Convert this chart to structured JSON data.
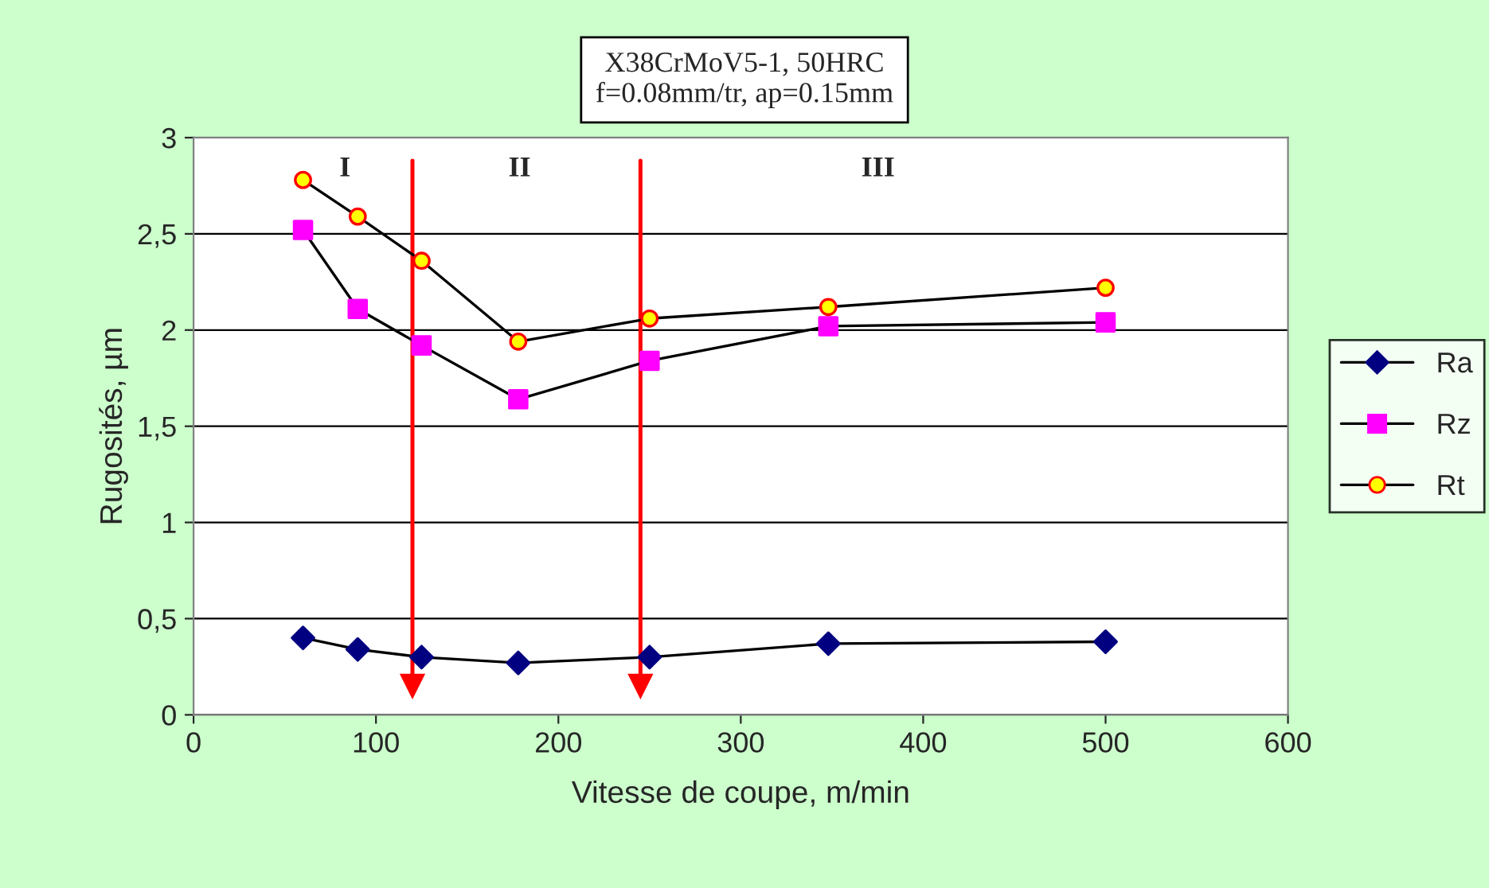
{
  "chart_data": {
    "type": "line",
    "title": "X38CrMoV5-1, 50HRC\nf=0.08mm/tr, ap=0.15mm",
    "xlabel": "Vitesse de coupe, m/min",
    "ylabel": "Rugosités, µm",
    "x": [
      60,
      90,
      125,
      178,
      250,
      348,
      500
    ],
    "series": [
      {
        "name": "Ra",
        "color": "#000080",
        "marker": "diamond",
        "values": [
          0.4,
          0.34,
          0.3,
          0.27,
          0.3,
          0.37,
          0.38
        ]
      },
      {
        "name": "Rz",
        "color": "#ff00ff",
        "marker": "square",
        "values": [
          2.52,
          2.11,
          1.92,
          1.64,
          1.84,
          2.02,
          2.04
        ]
      },
      {
        "name": "Rt",
        "color": "#ffff00",
        "marker": "circle",
        "values": [
          2.78,
          2.59,
          2.36,
          1.94,
          2.06,
          2.12,
          2.22
        ]
      }
    ],
    "xlim": [
      0,
      600
    ],
    "xticks": [
      0,
      100,
      200,
      300,
      400,
      500,
      600
    ],
    "ylim": [
      0,
      3
    ],
    "yticks": [
      0,
      {
        "value": 0.5,
        "label": "0,5"
      },
      1,
      {
        "value": 1.5,
        "label": "1,5"
      },
      2,
      {
        "value": 2.5,
        "label": "2,5"
      },
      3
    ],
    "grid": "y",
    "legend": "right",
    "ref_lines": [
      {
        "axis": "x",
        "value": 120,
        "color": "#ff0000"
      },
      {
        "axis": "x",
        "value": 245,
        "color": "#ff0000"
      }
    ],
    "annotations": [
      "I",
      "II",
      "III"
    ]
  }
}
